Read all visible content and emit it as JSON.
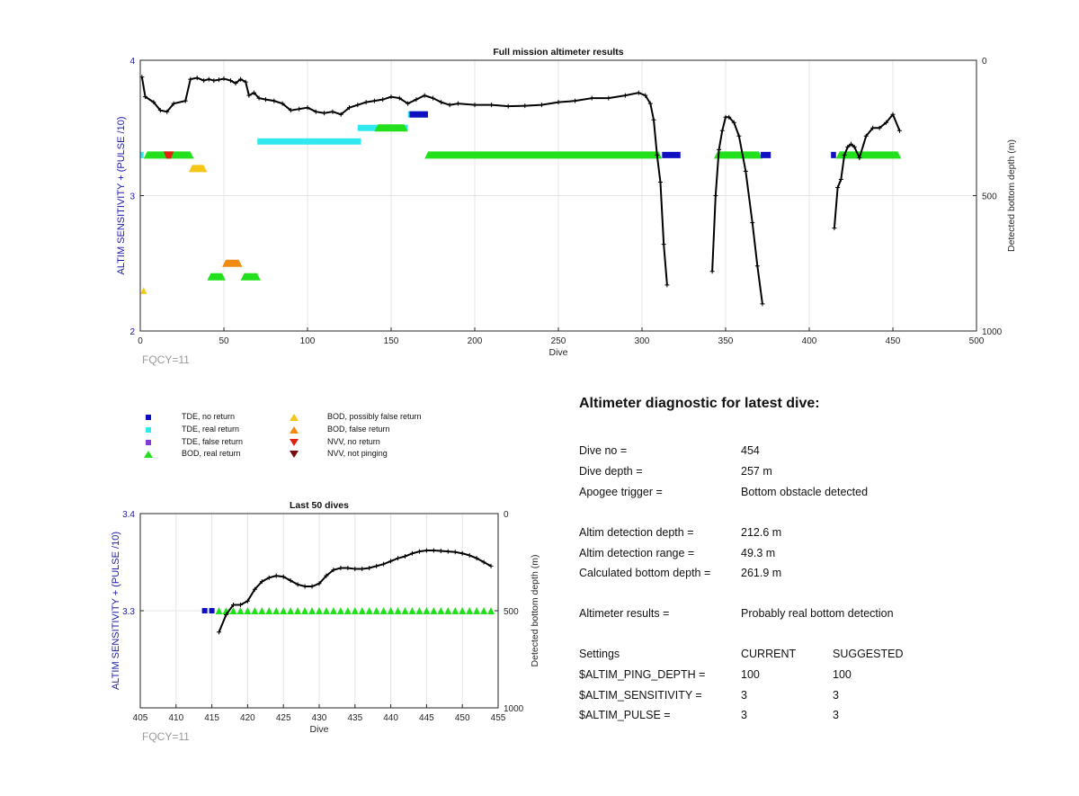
{
  "colors": {
    "tde_no_return": "#1010c0",
    "tde_real_return": "#30e8f0",
    "tde_false_return": "#8a3ad0",
    "bod_real_return": "#22e01c",
    "bod_possibly_false": "#f5c518",
    "bod_false_return": "#f08a10",
    "nvv_no_return": "#e02010",
    "nvv_not_pinging": "#7a0a0a",
    "axis_blue": "#1a1ab0",
    "fqcy_gray": "#9a9a9a"
  },
  "legend": [
    {
      "label": "TDE, no return",
      "marker": "square",
      "color_key": "tde_no_return"
    },
    {
      "label": "TDE, real return",
      "marker": "square",
      "color_key": "tde_real_return"
    },
    {
      "label": "TDE, false return",
      "marker": "square",
      "color_key": "tde_false_return"
    },
    {
      "label": "BOD, real return",
      "marker": "triangle-up",
      "color_key": "bod_real_return"
    },
    {
      "label": "BOD, possibly false return",
      "marker": "triangle-up",
      "color_key": "bod_possibly_false"
    },
    {
      "label": "BOD, false return",
      "marker": "triangle-up",
      "color_key": "bod_false_return"
    },
    {
      "label": "NVV, no return",
      "marker": "triangle-down",
      "color_key": "nvv_no_return"
    },
    {
      "label": "NVV, not pinging",
      "marker": "triangle-down",
      "color_key": "nvv_not_pinging"
    }
  ],
  "diagnostic": {
    "title": "Altimeter diagnostic for latest dive:",
    "dive_no_label": "Dive no =",
    "dive_no": "454",
    "dive_depth_label": "Dive depth =",
    "dive_depth": "257 m",
    "apogee_label": "Apogee trigger =",
    "apogee": "Bottom obstacle detected",
    "altim_det_depth_label": "Altim detection depth =",
    "altim_det_depth": "212.6 m",
    "altim_det_range_label": "Altim detection range =",
    "altim_det_range": "49.3 m",
    "calc_bottom_label": "Calculated bottom depth =",
    "calc_bottom": "261.9 m",
    "results_label": "Altimeter results =",
    "results": "Probably real bottom detection",
    "settings_label": "Settings",
    "current_label": "CURRENT",
    "suggested_label": "SUGGESTED",
    "settings": [
      {
        "name": "$ALTIM_PING_DEPTH =",
        "current": "100",
        "suggested": "100"
      },
      {
        "name": "$ALTIM_SENSITIVITY =",
        "current": "3",
        "suggested": "3"
      },
      {
        "name": "$ALTIM_PULSE =",
        "current": "3",
        "suggested": "3"
      }
    ]
  },
  "chart_data": [
    {
      "type": "scatter",
      "title": "Full mission altimeter results",
      "xlabel": "Dive",
      "ylabel": "ALTIM SENSITIVITY + (PULSE /10)",
      "y2label": "Detected bottom depth (m)",
      "annotation": "FQCY=11",
      "xlim": [
        0,
        500
      ],
      "ylim": [
        2,
        4
      ],
      "y2lim": [
        1000,
        0
      ],
      "xticks": [
        0,
        50,
        100,
        150,
        200,
        250,
        300,
        350,
        400,
        450,
        500
      ],
      "yticks": [
        2,
        3,
        4
      ],
      "y2ticks": [
        0,
        500,
        1000
      ],
      "grid": true,
      "segments": [
        {
          "series": "BOD, real return",
          "y": 3.3,
          "x0": 2,
          "x1": 32
        },
        {
          "series": "TDE, real return",
          "y": 3.3,
          "x0": 0,
          "x1": 2
        },
        {
          "series": "NVV, no return",
          "y": 3.3,
          "x0": 14,
          "x1": 20
        },
        {
          "series": "BOD, possibly false return",
          "y": 3.2,
          "x0": 29,
          "x1": 40
        },
        {
          "series": "BOD, possibly false return",
          "y": 2.3,
          "x0": 0,
          "x1": 4
        },
        {
          "series": "BOD, false return",
          "y": 2.5,
          "x0": 49,
          "x1": 61
        },
        {
          "series": "BOD, real return",
          "y": 2.4,
          "x0": 40,
          "x1": 51
        },
        {
          "series": "BOD, real return",
          "y": 2.4,
          "x0": 60,
          "x1": 72
        },
        {
          "series": "TDE, real return",
          "y": 3.4,
          "x0": 70,
          "x1": 132
        },
        {
          "series": "TDE, real return",
          "y": 3.5,
          "x0": 130,
          "x1": 160
        },
        {
          "series": "BOD, real return",
          "y": 3.5,
          "x0": 140,
          "x1": 160
        },
        {
          "series": "TDE, real return",
          "y": 3.6,
          "x0": 160,
          "x1": 172
        },
        {
          "series": "TDE, no return",
          "y": 3.6,
          "x0": 161,
          "x1": 172
        },
        {
          "series": "BOD, real return",
          "y": 3.3,
          "x0": 170,
          "x1": 312
        },
        {
          "series": "TDE, no return",
          "y": 3.3,
          "x0": 312,
          "x1": 323
        },
        {
          "series": "BOD, real return",
          "y": 3.3,
          "x0": 343,
          "x1": 372
        },
        {
          "series": "TDE, no return",
          "y": 3.3,
          "x0": 371,
          "x1": 377
        },
        {
          "series": "TDE, no return",
          "y": 3.3,
          "x0": 413,
          "x1": 416
        },
        {
          "series": "BOD, real return",
          "y": 3.3,
          "x0": 416,
          "x1": 455
        }
      ],
      "bottom_depth_series": {
        "name": "Detected bottom depth",
        "x": [
          1,
          3,
          8,
          12,
          16,
          20,
          27,
          30,
          34,
          38,
          41,
          44,
          47,
          50,
          54,
          57,
          60,
          63,
          65,
          68,
          71,
          75,
          80,
          85,
          90,
          95,
          100,
          105,
          110,
          115,
          120,
          125,
          130,
          135,
          140,
          145,
          150,
          155,
          160,
          165,
          170,
          175,
          180,
          185,
          190,
          200,
          210,
          220,
          230,
          240,
          250,
          260,
          270,
          280,
          290,
          298,
          302,
          305,
          307,
          309,
          311,
          313,
          315,
          342,
          344,
          346,
          348,
          350,
          352,
          355,
          358,
          362,
          366,
          369,
          372,
          415,
          417,
          419,
          421,
          423,
          425,
          427,
          430,
          434,
          438,
          442,
          446,
          450,
          454
        ],
        "y": [
          62,
          135,
          155,
          185,
          190,
          160,
          150,
          70,
          65,
          75,
          70,
          75,
          72,
          68,
          75,
          85,
          70,
          80,
          130,
          120,
          140,
          145,
          150,
          160,
          185,
          180,
          175,
          190,
          195,
          190,
          200,
          175,
          165,
          155,
          150,
          145,
          135,
          140,
          160,
          145,
          130,
          140,
          155,
          165,
          160,
          165,
          165,
          170,
          168,
          165,
          155,
          150,
          140,
          140,
          130,
          120,
          130,
          160,
          220,
          350,
          450,
          680,
          830,
          780,
          500,
          330,
          260,
          210,
          210,
          230,
          280,
          410,
          600,
          760,
          900,
          620,
          470,
          440,
          350,
          320,
          310,
          320,
          360,
          280,
          250,
          250,
          230,
          200,
          260
        ]
      }
    },
    {
      "type": "scatter",
      "title": "Last 50 dives",
      "xlabel": "Dive",
      "ylabel": "ALTIM SENSITIVITY + (PULSE /10)",
      "y2label": "Detected bottom depth (m)",
      "annotation": "FQCY=11",
      "xlim": [
        405,
        455
      ],
      "ylim": [
        3.2,
        3.4
      ],
      "y2lim": [
        1000,
        0
      ],
      "xticks": [
        405,
        410,
        415,
        420,
        425,
        430,
        435,
        440,
        445,
        450,
        455
      ],
      "yticks": [
        3.3,
        3.4
      ],
      "y2ticks": [
        0,
        500,
        1000
      ],
      "grid": true,
      "tde_no_return_x": [
        414,
        415
      ],
      "bod_real_return_x": [
        416,
        417,
        418,
        419,
        420,
        421,
        422,
        423,
        424,
        425,
        426,
        427,
        428,
        429,
        430,
        431,
        432,
        433,
        434,
        435,
        436,
        437,
        438,
        439,
        440,
        441,
        442,
        443,
        444,
        445,
        446,
        447,
        448,
        449,
        450,
        451,
        452,
        453,
        454
      ],
      "bottom_depth_series": {
        "name": "Detected bottom depth",
        "x": [
          416,
          417,
          418,
          419,
          420,
          421,
          422,
          423,
          424,
          425,
          426,
          427,
          428,
          429,
          430,
          431,
          432,
          433,
          434,
          435,
          436,
          437,
          438,
          439,
          440,
          441,
          442,
          443,
          444,
          445,
          446,
          447,
          448,
          449,
          450,
          451,
          452,
          453,
          454
        ],
        "y": [
          610,
          520,
          470,
          470,
          450,
          390,
          350,
          330,
          320,
          325,
          345,
          365,
          375,
          375,
          360,
          320,
          290,
          280,
          280,
          285,
          285,
          280,
          270,
          260,
          245,
          230,
          220,
          205,
          195,
          190,
          190,
          192,
          195,
          198,
          205,
          215,
          230,
          250,
          270
        ]
      }
    }
  ]
}
